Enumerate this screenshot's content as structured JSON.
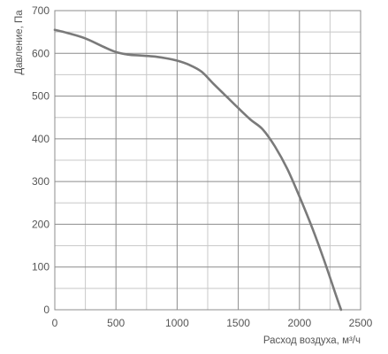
{
  "chart_data": {
    "type": "line",
    "title": "",
    "xlabel": "Расход воздуха, м³/ч",
    "ylabel": "Давление, Па",
    "xlim": [
      0,
      2500
    ],
    "ylim": [
      0,
      700
    ],
    "x_ticks": [
      "0",
      "500",
      "1000",
      "1500",
      "2000",
      "2500"
    ],
    "y_ticks": [
      "0",
      "100",
      "200",
      "300",
      "400",
      "500",
      "600",
      "700"
    ],
    "grid": true,
    "minor_grid": true,
    "legend": "none",
    "colors": {
      "line": "#7a7a7a",
      "grid_major": "#8c8c8c",
      "grid_minor": "#c8c8c8",
      "text": "#555555"
    },
    "series": [
      {
        "x": [
          0,
          100,
          250,
          400,
          500,
          600,
          700,
          800,
          900,
          1000,
          1100,
          1200,
          1300,
          1400,
          1500,
          1600,
          1700,
          1800,
          1900,
          2000,
          2100,
          2200,
          2300,
          2340
        ],
        "y": [
          655,
          648,
          635,
          615,
          603,
          597,
          595,
          593,
          589,
          583,
          573,
          557,
          528,
          500,
          472,
          445,
          422,
          382,
          330,
          265,
          195,
          117,
          33,
          0
        ]
      }
    ]
  }
}
